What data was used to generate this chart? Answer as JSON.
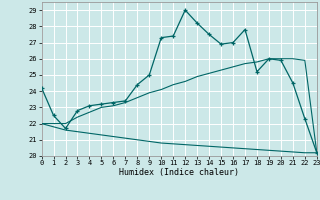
{
  "xlabel": "Humidex (Indice chaleur)",
  "bg_color": "#cce8e8",
  "grid_color": "#ffffff",
  "line_color": "#006666",
  "xlim": [
    0,
    23
  ],
  "ylim": [
    20,
    29.5
  ],
  "yticks": [
    20,
    21,
    22,
    23,
    24,
    25,
    26,
    27,
    28,
    29
  ],
  "xticks": [
    0,
    1,
    2,
    3,
    4,
    5,
    6,
    7,
    8,
    9,
    10,
    11,
    12,
    13,
    14,
    15,
    16,
    17,
    18,
    19,
    20,
    21,
    22,
    23
  ],
  "main_x": [
    0,
    1,
    2,
    3,
    4,
    5,
    6,
    7,
    8,
    9,
    10,
    11,
    12,
    13,
    14,
    15,
    16,
    17,
    18,
    19,
    20,
    21,
    22,
    23
  ],
  "main_y": [
    24.2,
    22.5,
    21.7,
    22.8,
    23.1,
    23.2,
    23.3,
    23.4,
    24.4,
    25.0,
    27.3,
    27.4,
    29.0,
    28.2,
    27.5,
    26.9,
    27.0,
    27.8,
    25.2,
    26.0,
    25.9,
    24.5,
    22.3,
    20.2
  ],
  "upper_x": [
    0,
    2,
    3,
    4,
    5,
    6,
    7,
    8,
    9,
    10,
    11,
    12,
    13,
    14,
    15,
    16,
    17,
    18,
    19,
    20,
    21,
    22,
    23
  ],
  "upper_y": [
    22.0,
    22.0,
    22.4,
    22.7,
    23.0,
    23.1,
    23.3,
    23.6,
    23.9,
    24.1,
    24.4,
    24.6,
    24.9,
    25.1,
    25.3,
    25.5,
    25.7,
    25.8,
    26.0,
    26.0,
    26.0,
    25.9,
    20.2
  ],
  "lower_x": [
    0,
    2,
    3,
    4,
    5,
    6,
    7,
    8,
    9,
    10,
    11,
    12,
    13,
    14,
    15,
    16,
    17,
    18,
    19,
    20,
    21,
    22,
    23
  ],
  "lower_y": [
    22.0,
    21.6,
    21.5,
    21.4,
    21.3,
    21.2,
    21.1,
    21.0,
    20.9,
    20.8,
    20.75,
    20.7,
    20.65,
    20.6,
    20.55,
    20.5,
    20.45,
    20.4,
    20.35,
    20.3,
    20.25,
    20.2,
    20.2
  ]
}
